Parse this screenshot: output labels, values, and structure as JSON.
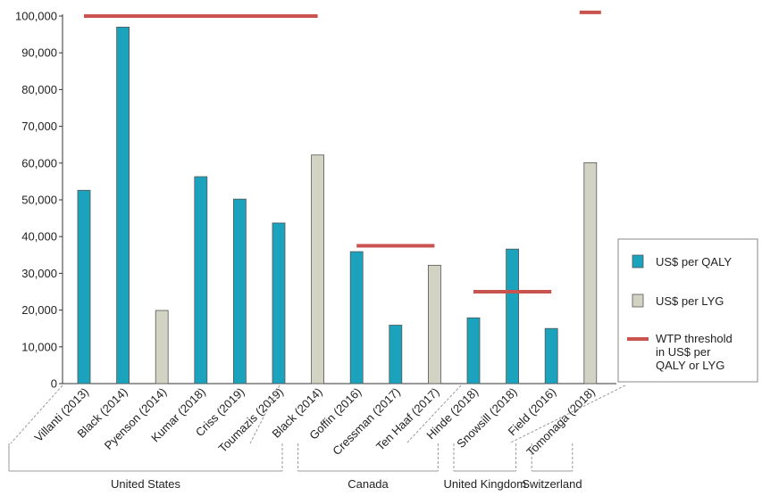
{
  "chart_data": {
    "type": "bar",
    "ylim": [
      0,
      100000
    ],
    "yticks": [
      "0",
      "10,000",
      "20,000",
      "30,000",
      "40,000",
      "50,000",
      "60,000",
      "70,000",
      "80,000",
      "90,000",
      "100,000"
    ],
    "categories": [
      "Villanti (2013)",
      "Black (2014)",
      "Pyenson (2014)",
      "Kumar (2018)",
      "Criss (2019)",
      "Toumazis (2019)",
      "Black (2014)",
      "Goffin (2016)",
      "Cressman (2017)",
      "Ten Haaf (2017)",
      "Hinde (2018)",
      "Snowsill (2018)",
      "Field (2016)",
      "Tomonaga (2018)"
    ],
    "series": [
      {
        "name": "US$ per QALY",
        "values": [
          52600,
          97000,
          null,
          56300,
          50200,
          43700,
          null,
          35900,
          15900,
          null,
          17900,
          36600,
          15000,
          null
        ],
        "color": "#1ba3bd"
      },
      {
        "name": "US$ per LYG",
        "values": [
          null,
          null,
          19900,
          null,
          null,
          null,
          62200,
          null,
          null,
          32200,
          null,
          null,
          null,
          60100
        ],
        "color": "#d3d3c4"
      }
    ],
    "thresholds": [
      {
        "from": 0,
        "to": 6,
        "value": 100000
      },
      {
        "from": 7,
        "to": 9,
        "value": 37500
      },
      {
        "from": 10,
        "to": 12,
        "value": 25000
      },
      {
        "from": 13,
        "to": 13,
        "value": 101000
      }
    ],
    "threshold_color": "#c9534f",
    "legend": {
      "position": "right",
      "items": [
        {
          "label": "US$ per QALY",
          "kind": "bar-qaly"
        },
        {
          "label": "US$ per LYG",
          "kind": "bar-lyg"
        },
        {
          "label_lines": [
            "WTP threshold",
            "in US$ per",
            "QALY or LYG"
          ],
          "kind": "line"
        }
      ]
    },
    "groups": [
      {
        "label": "United States",
        "from": 0,
        "to": 5
      },
      {
        "label": "Canada",
        "from": 6,
        "to": 9
      },
      {
        "label": "United Kingdom",
        "from": 10,
        "to": 11
      },
      {
        "label": "Switzerland",
        "from": 12,
        "to": 13
      }
    ],
    "grid": false
  }
}
